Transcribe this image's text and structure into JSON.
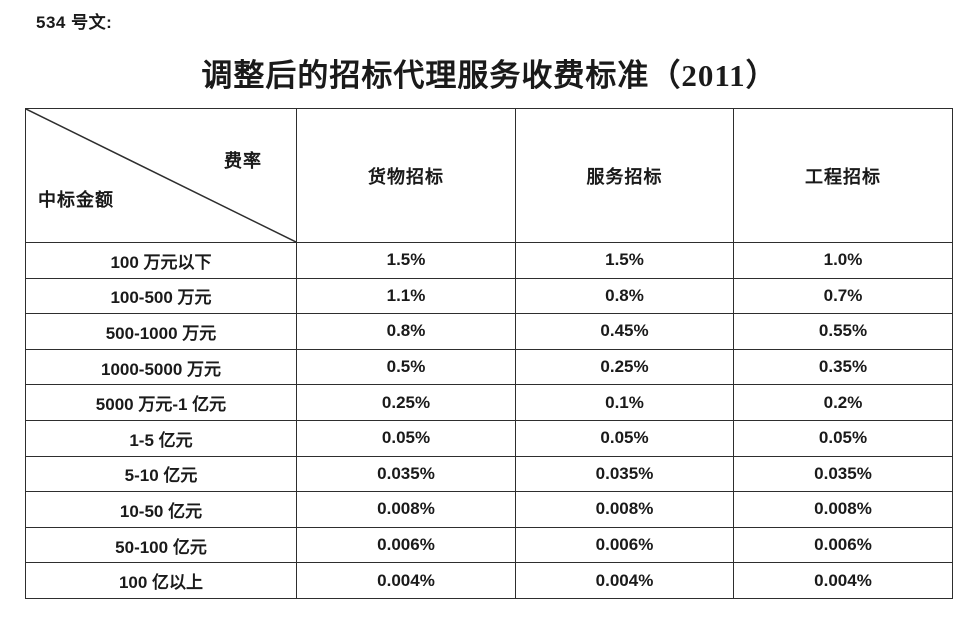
{
  "page": {
    "doc_label": "534 号文:",
    "title": "调整后的招标代理服务收费标准（2011）"
  },
  "table": {
    "corner": {
      "top_right": "费率",
      "bottom_left": "中标金额"
    },
    "columns": [
      "货物招标",
      "服务招标",
      "工程招标"
    ],
    "rows": [
      {
        "label": "100 万元以下",
        "values": [
          "1.5%",
          "1.5%",
          "1.0%"
        ]
      },
      {
        "label": "100-500 万元",
        "values": [
          "1.1%",
          "0.8%",
          "0.7%"
        ]
      },
      {
        "label": "500-1000 万元",
        "values": [
          "0.8%",
          "0.45%",
          "0.55%"
        ]
      },
      {
        "label": "1000-5000 万元",
        "values": [
          "0.5%",
          "0.25%",
          "0.35%"
        ]
      },
      {
        "label": "5000 万元-1 亿元",
        "values": [
          "0.25%",
          "0.1%",
          "0.2%"
        ]
      },
      {
        "label": "1-5 亿元",
        "values": [
          "0.05%",
          "0.05%",
          "0.05%"
        ]
      },
      {
        "label": "5-10 亿元",
        "values": [
          "0.035%",
          "0.035%",
          "0.035%"
        ]
      },
      {
        "label": "10-50 亿元",
        "values": [
          "0.008%",
          "0.008%",
          "0.008%"
        ]
      },
      {
        "label": "50-100 亿元",
        "values": [
          "0.006%",
          "0.006%",
          "0.006%"
        ]
      },
      {
        "label": "100 亿以上",
        "values": [
          "0.004%",
          "0.004%",
          "0.004%"
        ]
      }
    ],
    "line_color": "#2e2e2e"
  }
}
